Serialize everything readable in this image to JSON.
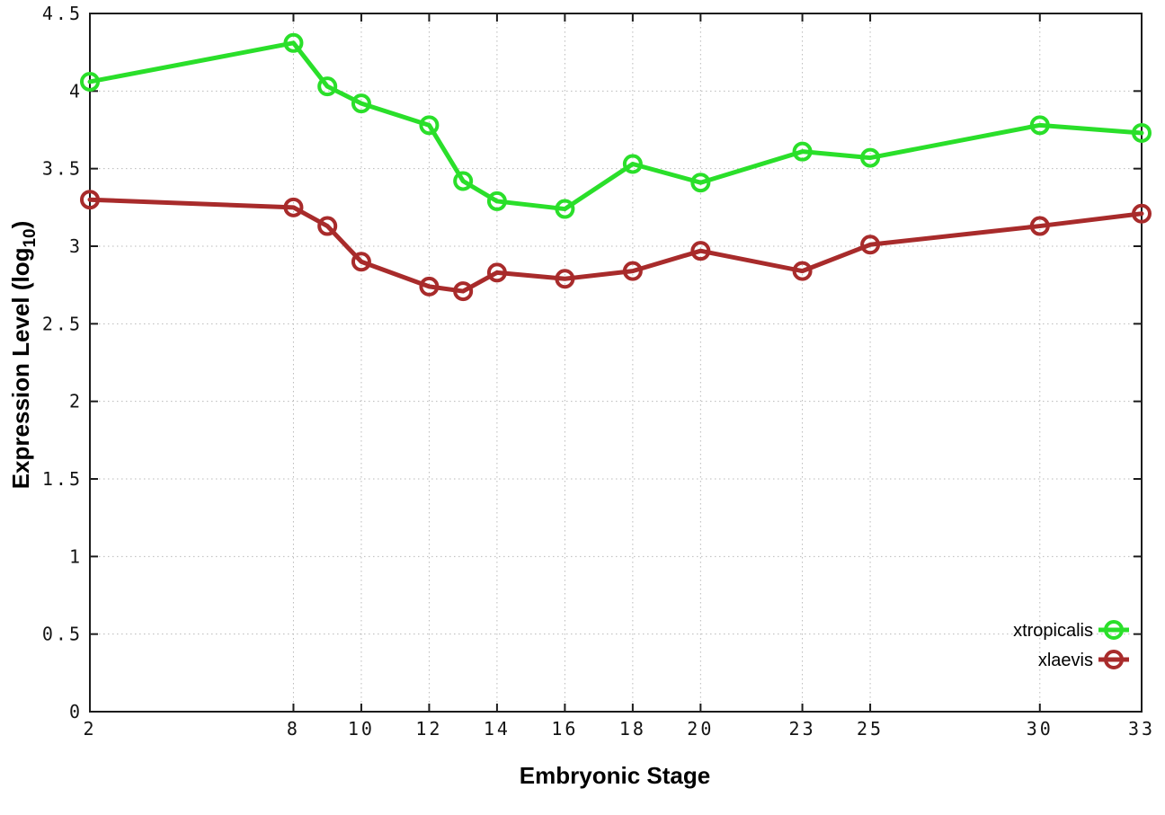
{
  "chart_data": {
    "type": "line",
    "title": "",
    "xlabel": "Embryonic Stage",
    "ylabel": "Expression Level (log10)",
    "ylabel_parts": {
      "pre": "Expression Level (log",
      "sub": "10",
      "post": ")"
    },
    "xlim": [
      2,
      33
    ],
    "ylim": [
      0,
      4.5
    ],
    "x_ticks": [
      2,
      8,
      10,
      12,
      14,
      16,
      18,
      20,
      23,
      25,
      30,
      33
    ],
    "y_ticks": [
      0,
      0.5,
      1,
      1.5,
      2,
      2.5,
      3,
      3.5,
      4,
      4.5
    ],
    "grid": true,
    "legend_position": "bottom-right-inside",
    "x": [
      2,
      8,
      9,
      10,
      12,
      13,
      14,
      16,
      18,
      20,
      23,
      25,
      30,
      33
    ],
    "series": [
      {
        "name": "xtropicalis",
        "color": "#2adf2a",
        "values": [
          4.06,
          4.31,
          4.03,
          3.92,
          3.78,
          3.42,
          3.29,
          3.24,
          3.53,
          3.41,
          3.61,
          3.57,
          3.78,
          3.73
        ]
      },
      {
        "name": "xlaevis",
        "color": "#a82b2b",
        "values": [
          3.3,
          3.25,
          3.13,
          2.9,
          2.74,
          2.71,
          2.83,
          2.79,
          2.84,
          2.97,
          2.84,
          3.01,
          3.13,
          3.21
        ]
      }
    ]
  }
}
